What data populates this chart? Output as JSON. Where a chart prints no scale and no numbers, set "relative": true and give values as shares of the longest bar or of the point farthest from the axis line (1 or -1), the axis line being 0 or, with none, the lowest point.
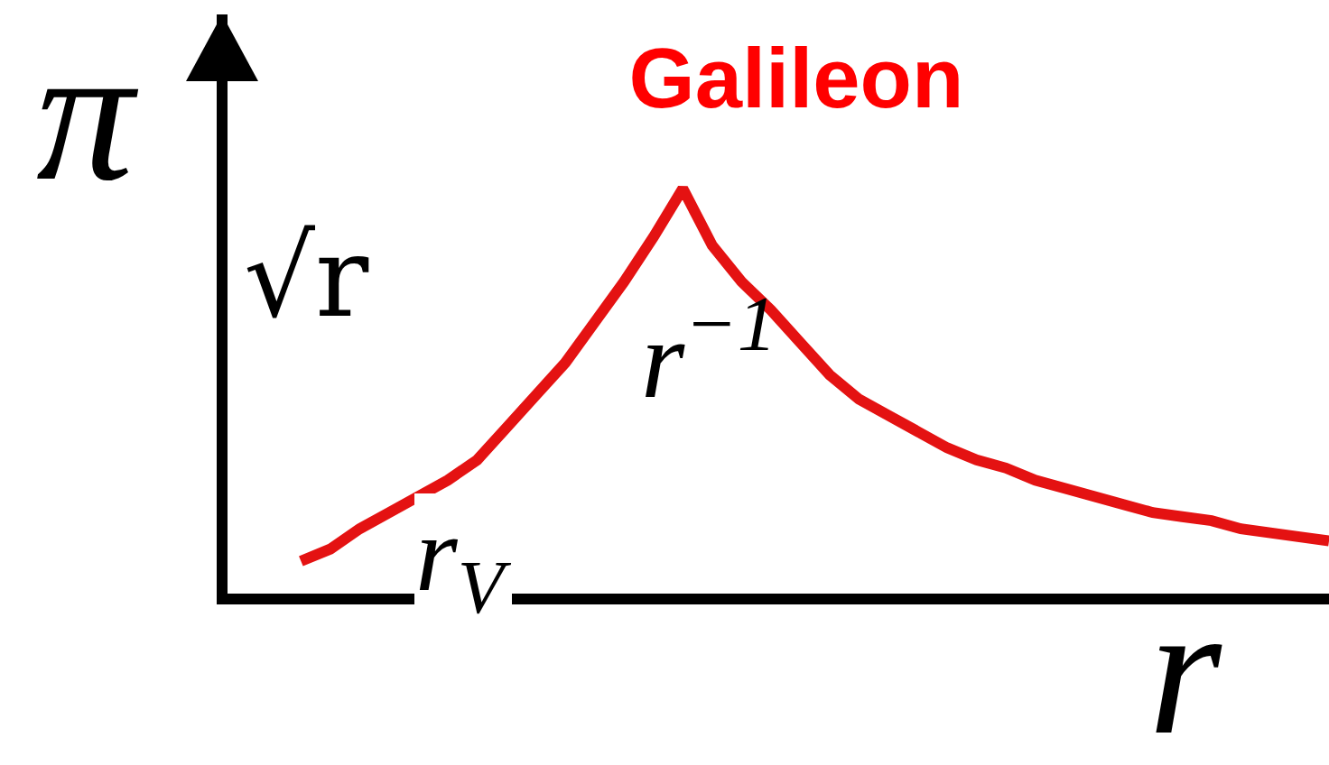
{
  "chart_data": {
    "type": "line",
    "title": "Galileon",
    "xlabel": "r",
    "ylabel": "π",
    "annotations": [
      "√r",
      "r$^{−1}$",
      "r$_{V}$"
    ],
    "relative": true,
    "categories": [
      null,
      null,
      null,
      null,
      null,
      null,
      null,
      null,
      null,
      null,
      null,
      null,
      null,
      null,
      null,
      null,
      null,
      null,
      null,
      null,
      null,
      null,
      null,
      null,
      null,
      null,
      null,
      null,
      null,
      null,
      null,
      null,
      null,
      null,
      null,
      null,
      null,
      null
    ],
    "series": [
      {
        "color": "#e41212",
        "values": [
          null,
          null,
          0.08,
          0.11,
          0.16,
          0.2,
          0.24,
          0.28,
          0.33,
          0.41,
          0.49,
          0.57,
          0.67,
          0.77,
          0.88,
          1,
          0.86,
          0.77,
          0.7,
          0.62,
          0.54,
          0.48,
          0.44,
          0.4,
          0.36,
          0.33,
          0.31,
          0.28,
          0.26,
          0.24,
          0.22,
          0.2,
          0.19,
          0.18,
          0.16,
          0.15,
          0.14,
          0.13
        ]
      }
    ]
  }
}
